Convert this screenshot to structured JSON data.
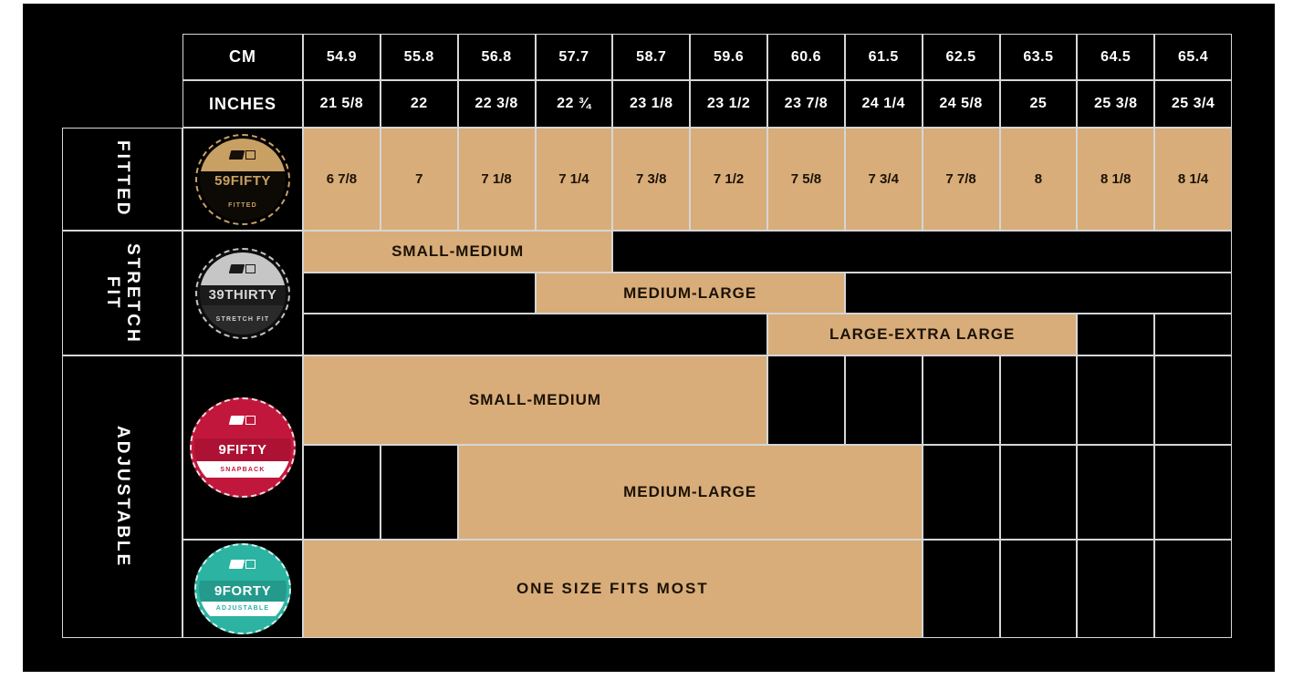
{
  "colors": {
    "page_background": "#ffffff",
    "canvas_background": "#000000",
    "cell_fill_tan": "#d8ad7a",
    "table_border": "#d6d6d6",
    "header_text": "#ffffff",
    "band_text": "#1c1206",
    "badge_59fifty_gold": "#c9a063",
    "badge_39thirty_silver": "#c6c6c6",
    "badge_9fifty_crimson": "#c2173c",
    "badge_9forty_teal": "#2cb3a2"
  },
  "header": {
    "cm_label": "CM",
    "inches_label": "INCHES",
    "cm_values": [
      "54.9",
      "55.8",
      "56.8",
      "57.7",
      "58.7",
      "59.6",
      "60.6",
      "61.5",
      "62.5",
      "63.5",
      "64.5",
      "65.4"
    ],
    "inches_values": [
      "21 5/8",
      "22",
      "22 3/8",
      "22 ¾",
      "23 1/8",
      "23 1/2",
      "23 7/8",
      "24 1/4",
      "24 5/8",
      "25",
      "25 3/8",
      "25 3/4"
    ]
  },
  "fitted": {
    "label": "FITTED",
    "badge": {
      "name": "59FIFTY",
      "sub": "FITTED"
    },
    "sizes": [
      "6 7/8",
      "7",
      "7 1/8",
      "7 1/4",
      "7 3/8",
      "7 1/2",
      "7 5/8",
      "7 3/4",
      "7 7/8",
      "8",
      "8 1/8",
      "8 1/4"
    ]
  },
  "stretch": {
    "label": "STRETCH FIT",
    "badge": {
      "name": "39THIRTY",
      "sub": "STRETCH FIT"
    },
    "bands": {
      "small_medium": "SMALL-MEDIUM",
      "medium_large": "MEDIUM-LARGE",
      "large_xl": "LARGE-EXTRA LARGE"
    }
  },
  "adjustable": {
    "label": "ADJUSTABLE",
    "badge_9fifty": {
      "name": "9FIFTY",
      "sub": "SNAPBACK"
    },
    "badge_9forty": {
      "name": "9FORTY",
      "sub": "ADJUSTABLE"
    },
    "bands": {
      "small_medium": "SMALL-MEDIUM",
      "medium_large": "MEDIUM-LARGE",
      "one_size": "ONE SIZE FITS MOST"
    }
  },
  "chart_data": {
    "type": "table",
    "columns_cm": [
      54.9,
      55.8,
      56.8,
      57.7,
      58.7,
      59.6,
      60.6,
      61.5,
      62.5,
      63.5,
      64.5,
      65.4
    ],
    "columns_inches": [
      "21 5/8",
      "22",
      "22 3/8",
      "22 3/4",
      "23 1/8",
      "23 1/2",
      "23 7/8",
      "24 1/4",
      "24 5/8",
      "25",
      "25 3/8",
      "25 3/4"
    ],
    "rows": [
      {
        "category": "FITTED",
        "product": "59FIFTY",
        "sizes": [
          "6 7/8",
          "7",
          "7 1/8",
          "7 1/4",
          "7 3/8",
          "7 1/2",
          "7 5/8",
          "7 3/4",
          "7 7/8",
          "8",
          "8 1/8",
          "8 1/4"
        ]
      },
      {
        "category": "STRETCH FIT",
        "product": "39THIRTY",
        "ranges": [
          {
            "label": "SMALL-MEDIUM",
            "col_start": 1,
            "col_span": 4,
            "cm_from": 54.9,
            "cm_to": 57.7
          },
          {
            "label": "MEDIUM-LARGE",
            "col_start": 4,
            "col_span": 4,
            "cm_from": 57.7,
            "cm_to": 60.6
          },
          {
            "label": "LARGE-EXTRA LARGE",
            "col_start": 7,
            "col_span": 4,
            "cm_from": 60.6,
            "cm_to": 63.5
          }
        ]
      },
      {
        "category": "ADJUSTABLE",
        "product": "9FIFTY",
        "ranges": [
          {
            "label": "SMALL-MEDIUM",
            "col_start": 1,
            "col_span": 6,
            "cm_from": 54.9,
            "cm_to": 59.6
          },
          {
            "label": "MEDIUM-LARGE",
            "col_start": 3,
            "col_span": 6,
            "cm_from": 56.8,
            "cm_to": 61.5
          }
        ]
      },
      {
        "category": "ADJUSTABLE",
        "product": "9FORTY",
        "ranges": [
          {
            "label": "ONE SIZE FITS MOST",
            "col_start": 1,
            "col_span": 8,
            "cm_from": 54.9,
            "cm_to": 61.5
          }
        ]
      }
    ]
  }
}
